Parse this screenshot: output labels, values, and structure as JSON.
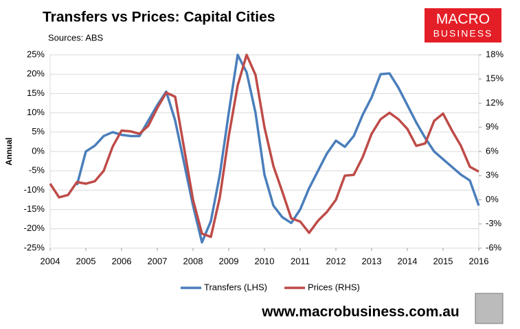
{
  "chart_data": {
    "type": "line",
    "title": "Transfers vs Prices: Capital Cities",
    "subtitle": "Sources: ABS",
    "y_label": "Annual",
    "brand": [
      "MACRO",
      "BUSINESS"
    ],
    "footer": "www.macrobusiness.com.au",
    "x": [
      2004,
      2004.25,
      2004.5,
      2004.75,
      2005,
      2005.25,
      2005.5,
      2005.75,
      2006,
      2006.25,
      2006.5,
      2006.75,
      2007,
      2007.25,
      2007.5,
      2007.75,
      2008,
      2008.25,
      2008.5,
      2008.75,
      2009,
      2009.25,
      2009.5,
      2009.75,
      2010,
      2010.25,
      2010.5,
      2010.75,
      2011,
      2011.25,
      2011.5,
      2011.75,
      2012,
      2012.25,
      2012.5,
      2012.75,
      2013,
      2013.25,
      2013.5,
      2013.75,
      2014,
      2014.25,
      2014.5,
      2014.75,
      2015,
      2015.25,
      2015.5,
      2015.75,
      2016
    ],
    "series": [
      {
        "name": "Transfers (LHS)",
        "color": "#4a7ebb",
        "axis": "y",
        "values": [
          null,
          null,
          null,
          -8.7,
          0,
          1.5,
          4,
          5,
          4.3,
          4,
          4,
          8,
          12,
          15.5,
          8,
          -3,
          -14,
          -23.5,
          -18,
          -6,
          10,
          25,
          20.5,
          10,
          -6,
          -14,
          -17,
          -18.5,
          -15,
          -9.5,
          -5,
          -0.5,
          2.8,
          1.2,
          4,
          9.5,
          14,
          20,
          20.2,
          16.5,
          12,
          7.5,
          3.5,
          0,
          -2,
          -4,
          -6,
          -7.5,
          -14
        ]
      },
      {
        "name": "Prices (RHS)",
        "color": "#be4b48",
        "axis": "y2",
        "values": [
          2,
          0.3,
          0.6,
          2.2,
          2,
          2.3,
          3.6,
          6.6,
          8.6,
          8.5,
          8.2,
          9.2,
          11.4,
          13.3,
          12.8,
          6.4,
          0,
          -4.2,
          -4.6,
          0.3,
          7.9,
          14.2,
          18,
          15.5,
          9,
          4.2,
          1,
          -2.3,
          -2.7,
          -4.1,
          -2.6,
          -1.5,
          0,
          3,
          3.1,
          5.3,
          8.2,
          10,
          10.8,
          10,
          8.8,
          6.7,
          7,
          9.8,
          10.7,
          8.6,
          6.7,
          4.1,
          3.5
        ]
      }
    ],
    "xlim": [
      2004,
      2016
    ],
    "xticks": [
      2004,
      2005,
      2006,
      2007,
      2008,
      2009,
      2010,
      2011,
      2012,
      2013,
      2014,
      2015,
      2016
    ],
    "ylim": [
      -25,
      25
    ],
    "yticks": [
      {
        "value": 25,
        "label": "25%"
      },
      {
        "value": 20,
        "label": "20%"
      },
      {
        "value": 15,
        "label": "15%"
      },
      {
        "value": 10,
        "label": "10%"
      },
      {
        "value": 5,
        "label": "5%"
      },
      {
        "value": 0,
        "label": "0%"
      },
      {
        "value": -5,
        "label": "-5%"
      },
      {
        "value": -10,
        "label": "-10%"
      },
      {
        "value": -15,
        "label": "-15%"
      },
      {
        "value": -20,
        "label": "-20%"
      },
      {
        "value": -25,
        "label": "-25%"
      }
    ],
    "y2lim": [
      -6,
      18
    ],
    "y2ticks": [
      {
        "value": 18,
        "label": "18%"
      },
      {
        "value": 15,
        "label": "15%"
      },
      {
        "value": 12,
        "label": "12%"
      },
      {
        "value": 9,
        "label": "9%"
      },
      {
        "value": 6,
        "label": "6%"
      },
      {
        "value": 3,
        "label": "3%"
      },
      {
        "value": 0,
        "label": "0%"
      },
      {
        "value": -3,
        "label": "-3%"
      },
      {
        "value": -6,
        "label": "-6%"
      }
    ],
    "grid": true
  }
}
